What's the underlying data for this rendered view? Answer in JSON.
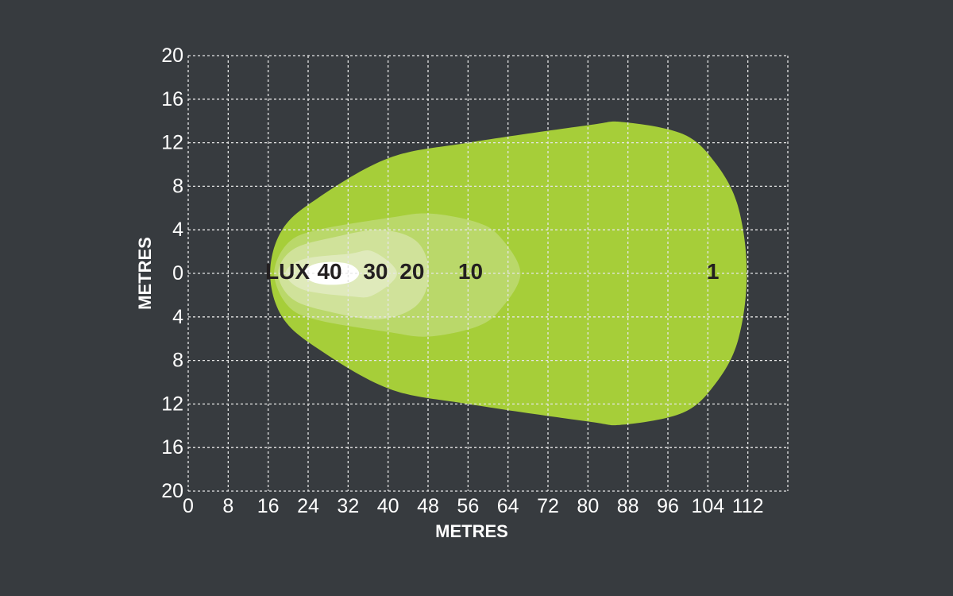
{
  "chart_data": {
    "type": "area",
    "title": "",
    "xlabel": "METRES",
    "ylabel": "METRES",
    "xlim": [
      0,
      120
    ],
    "ylim": [
      -20,
      20
    ],
    "grid": true,
    "x_ticks": [
      0,
      8,
      16,
      24,
      32,
      40,
      48,
      56,
      64,
      72,
      80,
      88,
      96,
      104,
      112
    ],
    "y_ticks": [
      20,
      16,
      12,
      8,
      4,
      0,
      -4,
      -8,
      -12,
      -16,
      -20
    ],
    "y_tick_labels": [
      "20",
      "16",
      "12",
      "8",
      "4",
      "0",
      "4",
      "8",
      "12",
      "16",
      "20"
    ],
    "unit_label": "LUX",
    "background": "#373b3f",
    "contours": [
      {
        "label": "1",
        "label_x": 105,
        "color": "#a6ce39",
        "points": [
          [
            16.4,
            0
          ],
          [
            18.8,
            4.0
          ],
          [
            25.9,
            6.9
          ],
          [
            40.2,
            10.6
          ],
          [
            56,
            12
          ],
          [
            80,
            13.6
          ],
          [
            87,
            13.9
          ],
          [
            99,
            12.8
          ],
          [
            105.4,
            10.2
          ],
          [
            110,
            6.2
          ],
          [
            111.8,
            0
          ],
          [
            110,
            -6.2
          ],
          [
            105.4,
            -10.2
          ],
          [
            99,
            -12.8
          ],
          [
            87,
            -13.9
          ],
          [
            80,
            -13.6
          ],
          [
            56,
            -12
          ],
          [
            40.2,
            -10.6
          ],
          [
            25.9,
            -6.9
          ],
          [
            18.8,
            -4.0
          ]
        ]
      },
      {
        "label": "10",
        "label_x": 56.5,
        "color": "#bad86a",
        "points": [
          [
            17.2,
            0
          ],
          [
            20,
            2.8
          ],
          [
            26,
            4.0
          ],
          [
            40.2,
            5.1
          ],
          [
            48.2,
            5.5
          ],
          [
            57.7,
            4.7
          ],
          [
            62.5,
            3.3
          ],
          [
            66.5,
            0
          ],
          [
            62.5,
            -3.3
          ],
          [
            57.7,
            -4.9
          ],
          [
            48.2,
            -5.8
          ],
          [
            40.2,
            -5.4
          ],
          [
            26,
            -4.3
          ],
          [
            20,
            -3.0
          ]
        ]
      },
      {
        "label": "20",
        "label_x": 44.8,
        "color": "#d0e29a",
        "points": [
          [
            18,
            0
          ],
          [
            21,
            2.2
          ],
          [
            29,
            3.3
          ],
          [
            38.6,
            4.0
          ],
          [
            45.8,
            2.9
          ],
          [
            48.2,
            0
          ],
          [
            45.8,
            -2.9
          ],
          [
            38.6,
            -4.2
          ],
          [
            29,
            -3.6
          ],
          [
            21,
            -2.4
          ]
        ]
      },
      {
        "label": "30",
        "label_x": 37.5,
        "color": "#dfeabb",
        "points": [
          [
            19.5,
            0
          ],
          [
            23,
            1.3
          ],
          [
            32.3,
            1.8
          ],
          [
            37,
            2.0
          ],
          [
            41.8,
            0
          ],
          [
            37,
            -2.0
          ],
          [
            32.3,
            -2.1
          ],
          [
            23,
            -1.5
          ]
        ]
      },
      {
        "label": "40",
        "label_x": 28.3,
        "color": "#ffffff",
        "points": [
          [
            23,
            0
          ],
          [
            25,
            0.8
          ],
          [
            28.7,
            1.05
          ],
          [
            32.5,
            0.8
          ],
          [
            34.2,
            0
          ],
          [
            32.5,
            -0.8
          ],
          [
            28.7,
            -1.05
          ],
          [
            25,
            -0.8
          ]
        ]
      }
    ],
    "label_color": "#231f20"
  }
}
